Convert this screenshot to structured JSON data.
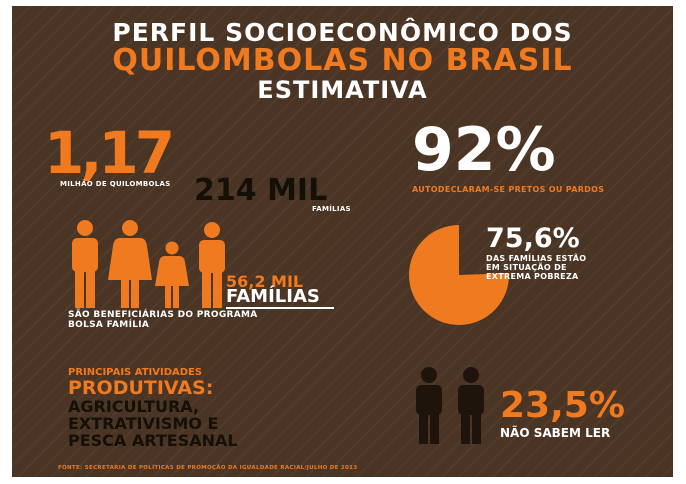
{
  "title": {
    "line1": "PERFIL SOCIOECONÔMICO DOS",
    "line2": "QUILOMBOLAS NO BRASIL",
    "line3": "ESTIMATIVA"
  },
  "population": {
    "value": "1,17",
    "label": "MILHÃO DE QUILOMBOLAS"
  },
  "families": {
    "value": "214 MIL",
    "label": "FAMÍLIAS"
  },
  "self_declared": {
    "value": "92%",
    "label": "AUTODECLARAM-SE PRETOS OU PARDOS"
  },
  "bolsa": {
    "value": "56,2 MIL",
    "unit": "FAMÍLIAS",
    "label_line1": "SÃO BENEFICIÁRIAS DO PROGRAMA",
    "label_line2": "BOLSA FAMÍLIA",
    "icon": "family-icon"
  },
  "poverty": {
    "value": "75,6%",
    "fraction": 0.756,
    "label_line1": "DAS FAMÍLIAS ESTÃO",
    "label_line2": "EM SITUAÇÃO DE",
    "label_line3": "EXTREMA POBREZA",
    "icon": "pie-icon"
  },
  "activities": {
    "heading_line1": "PRINCIPAIS ATIVIDADES",
    "heading_line2": "PRODUTIVAS:",
    "line1": "AGRICULTURA,",
    "line2": "EXTRATIVISMO E",
    "line3": "PESCA ARTESANAL"
  },
  "illiteracy": {
    "value": "23,5%",
    "label": "NÃO SABEM LER",
    "icon": "two-people-icon"
  },
  "source": "FONTE: SECRETARIA DE POLÍTICAS DE PROMOÇÃO DA IGUALDADE RACIAL/JULHO DE 2013",
  "colors": {
    "background": "#4a3424",
    "accent": "#f07a1f",
    "text": "#ffffff",
    "dark": "#141008"
  }
}
